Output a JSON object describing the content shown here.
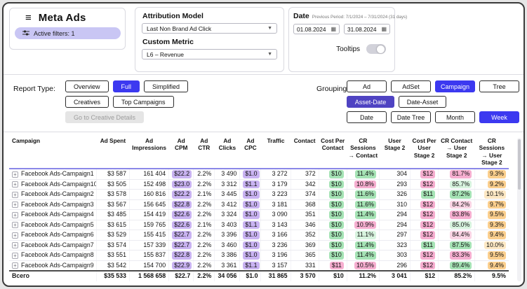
{
  "header": {
    "title": "Meta Ads",
    "active_filters": "Active filters: 1",
    "attribution_model": {
      "label": "Attribution Model",
      "value": "Last Non Brand Ad Click"
    },
    "custom_metric": {
      "label": "Custom Metric",
      "value": "L6 – Revenue"
    },
    "date": {
      "label": "Date",
      "previous_period": "Previous Period: 7/1/2024 – 7/31/2024 (31 days)",
      "start": "01.08.2024",
      "end": "31.08.2024"
    },
    "tooltips_label": "Tooltips",
    "tooltips_state": "off"
  },
  "toolbar": {
    "report_type_label": "Report Type:",
    "report_rows": [
      [
        {
          "label": "Overview"
        },
        {
          "label": "Full",
          "selected": true
        },
        {
          "label": "Simplified"
        }
      ],
      [
        {
          "label": "Creatives"
        },
        {
          "label": "Top Campaigns"
        }
      ],
      [
        {
          "label": "Go to Creative Details",
          "disabled": true
        }
      ]
    ],
    "grouping_label": "Grouping:",
    "grouping_rows": [
      [
        {
          "label": "Ad"
        },
        {
          "label": "AdSet"
        },
        {
          "label": "Campaign",
          "selected": true
        },
        {
          "label": "Tree"
        }
      ],
      [
        {
          "label": "Asset-Date",
          "selected": true,
          "dark": true
        },
        {
          "label": "Date-Asset"
        }
      ],
      [
        {
          "label": "Date"
        },
        {
          "label": "Date Tree"
        },
        {
          "label": "Month"
        },
        {
          "label": "Week",
          "selected": true
        }
      ]
    ]
  },
  "colors": {
    "accent_blue": "#3c39f0",
    "accent_indigo": "#4f43c2",
    "badge_lavender": "#c9c6f4",
    "pu": "#c9b3f2",
    "gr": "#a5e3b5",
    "gl": "#d7f3de",
    "pk": "#f6aed0",
    "pl": "#fad4e4",
    "ye": "#fbcf8e",
    "yl": "#fde8c4"
  },
  "table": {
    "columns": [
      "Campaign",
      "Ad Spent",
      "Ad Impressions",
      "Ad CPM",
      "Ad CTR",
      "Ad Clicks",
      "Ad CPC",
      "Traffic",
      "Contact",
      "Cost Per Contact",
      "CR Sessions → Contact",
      "User Stage 2",
      "Cost Per User Stage 2",
      "CR Contact → User Stage 2",
      "CR Sessions → User Stage 2"
    ],
    "rows": [
      {
        "name": "Facebook Ads-Campaign1",
        "cells": [
          [
            "$3 587"
          ],
          [
            "161 404"
          ],
          [
            "$22.2",
            "pu"
          ],
          [
            "2.2%"
          ],
          [
            "3 490"
          ],
          [
            "$1.0",
            "pu"
          ],
          [
            "3 272"
          ],
          [
            "372"
          ],
          [
            "$10",
            "gr"
          ],
          [
            "11.4%",
            "gr"
          ],
          [
            "304"
          ],
          [
            "$12",
            "pk"
          ],
          [
            "81.7%",
            "pk"
          ],
          [
            "9.3%",
            "ye"
          ]
        ]
      },
      {
        "name": "Facebook Ads-Campaign10",
        "cells": [
          [
            "$3 505"
          ],
          [
            "152 498"
          ],
          [
            "$23.0",
            "pu"
          ],
          [
            "2.2%"
          ],
          [
            "3 312"
          ],
          [
            "$1.1",
            "pu"
          ],
          [
            "3 179"
          ],
          [
            "342"
          ],
          [
            "$10",
            "gr"
          ],
          [
            "10.8%",
            "pk"
          ],
          [
            "293"
          ],
          [
            "$12",
            "pk"
          ],
          [
            "85.7%",
            "gl"
          ],
          [
            "9.2%",
            "ye"
          ]
        ]
      },
      {
        "name": "Facebook Ads-Campaign2",
        "cells": [
          [
            "$3 578"
          ],
          [
            "160 816"
          ],
          [
            "$22.2",
            "pu"
          ],
          [
            "2.1%"
          ],
          [
            "3 445"
          ],
          [
            "$1.0",
            "pu"
          ],
          [
            "3 223"
          ],
          [
            "374"
          ],
          [
            "$10",
            "gr"
          ],
          [
            "11.6%",
            "gr"
          ],
          [
            "326"
          ],
          [
            "$11",
            "gr"
          ],
          [
            "87.2%",
            "gr"
          ],
          [
            "10.1%",
            "yl"
          ]
        ]
      },
      {
        "name": "Facebook Ads-Campaign3",
        "cells": [
          [
            "$3 567"
          ],
          [
            "156 645"
          ],
          [
            "$22.8",
            "pu"
          ],
          [
            "2.2%"
          ],
          [
            "3 412"
          ],
          [
            "$1.0",
            "pu"
          ],
          [
            "3 181"
          ],
          [
            "368"
          ],
          [
            "$10",
            "gr"
          ],
          [
            "11.6%",
            "gr"
          ],
          [
            "310"
          ],
          [
            "$12",
            "pk"
          ],
          [
            "84.2%",
            "pl"
          ],
          [
            "9.7%",
            "ye"
          ]
        ]
      },
      {
        "name": "Facebook Ads-Campaign4",
        "cells": [
          [
            "$3 485"
          ],
          [
            "154 419"
          ],
          [
            "$22.6",
            "pu"
          ],
          [
            "2.2%"
          ],
          [
            "3 324"
          ],
          [
            "$1.0",
            "pu"
          ],
          [
            "3 090"
          ],
          [
            "351"
          ],
          [
            "$10",
            "gr"
          ],
          [
            "11.4%",
            "gr"
          ],
          [
            "294"
          ],
          [
            "$12",
            "pk"
          ],
          [
            "83.8%",
            "pk"
          ],
          [
            "9.5%",
            "ye"
          ]
        ]
      },
      {
        "name": "Facebook Ads-Campaign5",
        "cells": [
          [
            "$3 615"
          ],
          [
            "159 765"
          ],
          [
            "$22.6",
            "pu"
          ],
          [
            "2.1%"
          ],
          [
            "3 403"
          ],
          [
            "$1.1",
            "pu"
          ],
          [
            "3 143"
          ],
          [
            "346"
          ],
          [
            "$10",
            "gr"
          ],
          [
            "10.9%",
            "pk"
          ],
          [
            "294"
          ],
          [
            "$12",
            "pk"
          ],
          [
            "85.0%",
            "gl"
          ],
          [
            "9.3%",
            "ye"
          ]
        ]
      },
      {
        "name": "Facebook Ads-Campaign6",
        "cells": [
          [
            "$3 529"
          ],
          [
            "155 415"
          ],
          [
            "$22.7",
            "pu"
          ],
          [
            "2.2%"
          ],
          [
            "3 396"
          ],
          [
            "$1.0",
            "pu"
          ],
          [
            "3 166"
          ],
          [
            "352"
          ],
          [
            "$10",
            "gr"
          ],
          [
            "11.1%",
            "gl"
          ],
          [
            "297"
          ],
          [
            "$12",
            "pk"
          ],
          [
            "84.4%",
            "pl"
          ],
          [
            "9.4%",
            "ye"
          ]
        ]
      },
      {
        "name": "Facebook Ads-Campaign7",
        "cells": [
          [
            "$3 574"
          ],
          [
            "157 339"
          ],
          [
            "$22.7",
            "pu"
          ],
          [
            "2.2%"
          ],
          [
            "3 460"
          ],
          [
            "$1.0",
            "pu"
          ],
          [
            "3 236"
          ],
          [
            "369"
          ],
          [
            "$10",
            "gr"
          ],
          [
            "11.4%",
            "gr"
          ],
          [
            "323"
          ],
          [
            "$11",
            "gr"
          ],
          [
            "87.5%",
            "gr"
          ],
          [
            "10.0%",
            "yl"
          ]
        ]
      },
      {
        "name": "Facebook Ads-Campaign8",
        "cells": [
          [
            "$3 551"
          ],
          [
            "155 837"
          ],
          [
            "$22.8",
            "pu"
          ],
          [
            "2.2%"
          ],
          [
            "3 386"
          ],
          [
            "$1.0",
            "pu"
          ],
          [
            "3 196"
          ],
          [
            "365"
          ],
          [
            "$10",
            "gr"
          ],
          [
            "11.4%",
            "gr"
          ],
          [
            "303"
          ],
          [
            "$12",
            "pk"
          ],
          [
            "83.3%",
            "pk"
          ],
          [
            "9.5%",
            "ye"
          ]
        ]
      },
      {
        "name": "Facebook Ads-Campaign9",
        "cells": [
          [
            "$3 542"
          ],
          [
            "154 700"
          ],
          [
            "$22.9",
            "pu"
          ],
          [
            "2.2%"
          ],
          [
            "3 361"
          ],
          [
            "$1.1",
            "pu"
          ],
          [
            "3 157"
          ],
          [
            "331"
          ],
          [
            "$11",
            "pk"
          ],
          [
            "10.5%",
            "pk"
          ],
          [
            "296"
          ],
          [
            "$12",
            "pk"
          ],
          [
            "89.4%",
            "gr"
          ],
          [
            "9.4%",
            "ye"
          ]
        ]
      }
    ],
    "total": {
      "name": "Всего",
      "cells": [
        [
          "$35 533"
        ],
        [
          "1 568 658"
        ],
        [
          "$22.7"
        ],
        [
          "2.2%"
        ],
        [
          "34 056"
        ],
        [
          "$1.0"
        ],
        [
          "31 865"
        ],
        [
          "3 570"
        ],
        [
          "$10"
        ],
        [
          "11.2%"
        ],
        [
          "3 041"
        ],
        [
          "$12"
        ],
        [
          "85.2%"
        ],
        [
          "9.5%"
        ]
      ]
    }
  }
}
